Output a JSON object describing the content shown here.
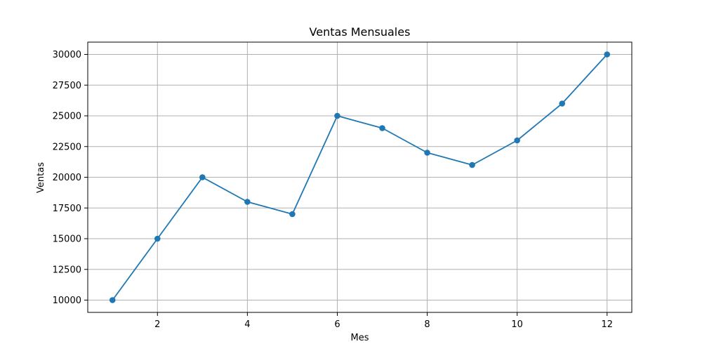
{
  "chart_data": {
    "type": "line",
    "title": "Ventas Mensuales",
    "xlabel": "Mes",
    "ylabel": "Ventas",
    "x": [
      1,
      2,
      3,
      4,
      5,
      6,
      7,
      8,
      9,
      10,
      11,
      12
    ],
    "series": [
      {
        "values": [
          10000,
          15000,
          20000,
          18000,
          17000,
          25000,
          24000,
          22000,
          21000,
          23000,
          26000,
          30000
        ],
        "color": "#1f77b4",
        "marker": "circle"
      }
    ],
    "xlim": [
      0.45,
      12.55
    ],
    "ylim": [
      9000,
      31000
    ],
    "xticks": [
      2,
      4,
      6,
      8,
      10,
      12
    ],
    "yticks": [
      10000,
      12500,
      15000,
      17500,
      20000,
      22500,
      25000,
      27500,
      30000
    ],
    "grid": true
  }
}
